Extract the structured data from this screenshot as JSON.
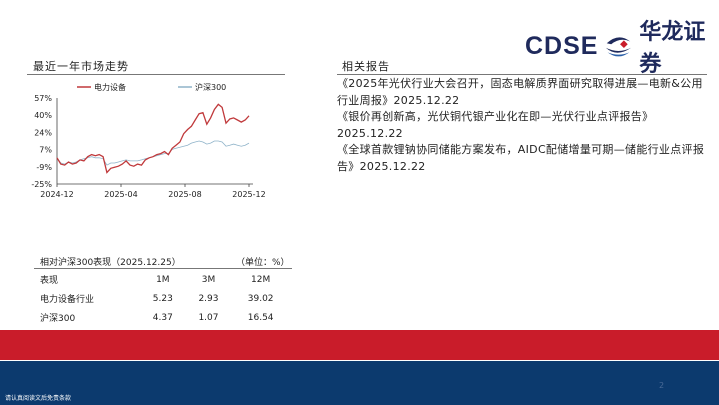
{
  "brand": {
    "en": "CDSE",
    "cn": "华龙证券",
    "colors": {
      "navy": "#1f2a5c",
      "red": "#c91c2a",
      "blue": "#0c3a6e"
    }
  },
  "left_title": "最近一年市场走势",
  "right_title": "相关报告",
  "reports": [
    "《2025年光伏行业大会召开，固态电解质界面研究取得进展—电新&公用行业周报》2025.12.22",
    "《银价再创新高，光伏铜代银产业化在即—光伏行业点评报告》2025.12.22",
    "《全球首款锂钠协同储能方案发布，AIDC配储增量可期—储能行业点评报告》2025.12.22"
  ],
  "chart_data": {
    "type": "line",
    "title": "最近一年市场走势",
    "yticks": [
      "57%",
      "40%",
      "24%",
      "7%",
      "-9%",
      "-25%"
    ],
    "ylim": [
      -25,
      57
    ],
    "xticks": [
      "2024-12",
      "2025-04",
      "2025-08",
      "2025-12"
    ],
    "legend_position": "top",
    "series": [
      {
        "name": "电力设备",
        "color": "#c0393b",
        "values": [
          0,
          -6,
          -7,
          -4,
          -6,
          -5,
          -2,
          -3,
          1,
          3,
          2,
          3,
          1,
          -14,
          -10,
          -9,
          -8,
          -6,
          -3,
          -7,
          -8,
          -6,
          -7,
          -2,
          0,
          1,
          3,
          4,
          6,
          3,
          9,
          12,
          15,
          23,
          27,
          30,
          36,
          42,
          43,
          32,
          38,
          46,
          51,
          48,
          33,
          37,
          38,
          36,
          34,
          36,
          40
        ]
      },
      {
        "name": "沪深300",
        "color": "#8fb3c9",
        "values": [
          0,
          -5,
          -6,
          -4,
          -5,
          -4,
          -2,
          -1,
          0,
          1,
          0,
          0,
          -1,
          -7,
          -5,
          -5,
          -4,
          -3,
          -2,
          -3,
          -3,
          -3,
          -2,
          -1,
          0,
          1,
          2,
          3,
          4,
          4,
          8,
          9,
          10,
          11,
          12,
          14,
          15,
          16,
          15,
          13,
          14,
          16,
          16,
          15,
          11,
          12,
          13,
          12,
          11,
          12,
          14
        ]
      }
    ]
  },
  "perf": {
    "title": "相对沪深300表现（2025.12.25）",
    "unit": "（单位：%）",
    "headers": [
      "表现",
      "1M",
      "3M",
      "12M"
    ],
    "rows": [
      [
        "电力设备行业",
        "5.23",
        "2.93",
        "39.02"
      ],
      [
        "沪深300",
        "4.37",
        "1.07",
        "16.54"
      ]
    ]
  },
  "footer": "请认真阅读文后免责条款",
  "page_number": "2"
}
